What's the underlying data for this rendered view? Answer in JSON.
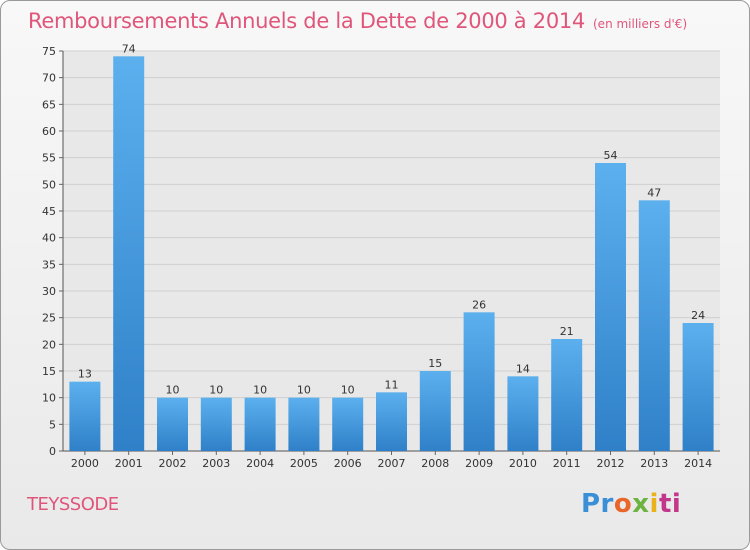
{
  "chart_data": {
    "type": "bar",
    "title": "Remboursements Annuels de la Dette de 2000 à 2014",
    "unit_note": "(en milliers d'€)",
    "categories": [
      "2000",
      "2001",
      "2002",
      "2003",
      "2004",
      "2005",
      "2006",
      "2007",
      "2008",
      "2009",
      "2010",
      "2011",
      "2012",
      "2013",
      "2014"
    ],
    "values": [
      13,
      74,
      10,
      10,
      10,
      10,
      10,
      11,
      15,
      26,
      14,
      21,
      54,
      47,
      24
    ],
    "ylim": [
      0,
      75
    ],
    "yticks": [
      0,
      5,
      10,
      15,
      20,
      25,
      30,
      35,
      40,
      45,
      50,
      55,
      60,
      65,
      70,
      75
    ],
    "grid": true,
    "bar_color": "#3e95dc",
    "title_color": "#e0557a"
  },
  "location": "TEYSSODE",
  "logo": {
    "p1": "Pr",
    "p2": "o",
    "p3": "x",
    "p4": "i",
    "p5": "ti"
  }
}
